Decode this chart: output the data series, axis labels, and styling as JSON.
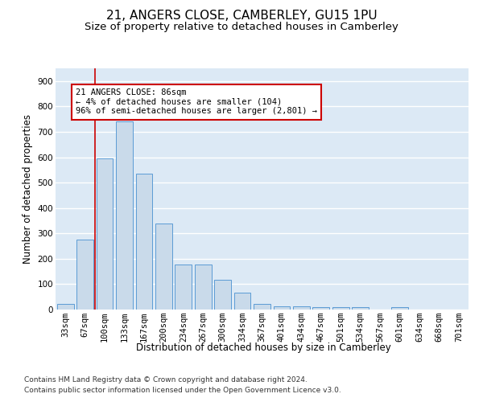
{
  "title1": "21, ANGERS CLOSE, CAMBERLEY, GU15 1PU",
  "title2": "Size of property relative to detached houses in Camberley",
  "xlabel": "Distribution of detached houses by size in Camberley",
  "ylabel": "Number of detached properties",
  "categories": [
    "33sqm",
    "67sqm",
    "100sqm",
    "133sqm",
    "167sqm",
    "200sqm",
    "234sqm",
    "267sqm",
    "300sqm",
    "334sqm",
    "367sqm",
    "401sqm",
    "434sqm",
    "467sqm",
    "501sqm",
    "534sqm",
    "567sqm",
    "601sqm",
    "634sqm",
    "668sqm",
    "701sqm"
  ],
  "values": [
    22,
    275,
    595,
    740,
    535,
    340,
    178,
    178,
    118,
    68,
    22,
    14,
    14,
    9,
    9,
    9,
    0,
    9,
    0,
    0,
    0
  ],
  "bar_color": "#c9daea",
  "bar_edge_color": "#5b9bd5",
  "vline_color": "#cc0000",
  "annotation_text": "21 ANGERS CLOSE: 86sqm\n← 4% of detached houses are smaller (104)\n96% of semi-detached houses are larger (2,801) →",
  "annotation_box_color": "#ffffff",
  "annotation_box_edge": "#cc0000",
  "ylim": [
    0,
    950
  ],
  "yticks": [
    0,
    100,
    200,
    300,
    400,
    500,
    600,
    700,
    800,
    900
  ],
  "footer1": "Contains HM Land Registry data © Crown copyright and database right 2024.",
  "footer2": "Contains public sector information licensed under the Open Government Licence v3.0.",
  "bg_color": "#dce9f5",
  "fig_bg_color": "#ffffff",
  "grid_color": "#ffffff",
  "title_fontsize": 11,
  "subtitle_fontsize": 9.5,
  "axis_label_fontsize": 8.5,
  "tick_fontsize": 7.5,
  "footer_fontsize": 6.5,
  "annotation_fontsize": 7.5
}
